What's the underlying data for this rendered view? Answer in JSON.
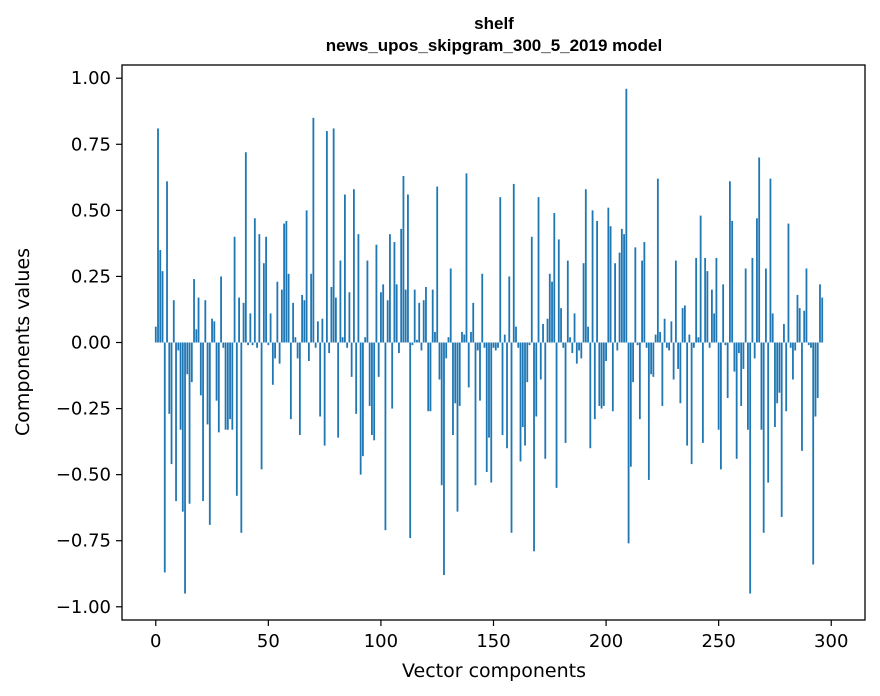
{
  "chart_data": {
    "type": "bar",
    "title": "shelf",
    "subtitle": "news_upos_skipgram_300_5_2019 model",
    "xlabel": "Vector components",
    "ylabel": "Components values",
    "xlim": [
      -15,
      315
    ],
    "ylim": [
      -1.05,
      1.05
    ],
    "x_ticks": [
      0,
      50,
      100,
      150,
      200,
      250,
      300
    ],
    "x_tick_labels": [
      "0",
      "50",
      "100",
      "150",
      "200",
      "250",
      "300"
    ],
    "y_ticks": [
      -1.0,
      -0.75,
      -0.5,
      -0.25,
      0.0,
      0.25,
      0.5,
      0.75,
      1.0
    ],
    "y_tick_labels": [
      "−1.00",
      "−0.75",
      "−0.50",
      "−0.25",
      "0.00",
      "0.25",
      "0.50",
      "0.75",
      "1.00"
    ],
    "bar_color": "#1f77b4",
    "values": [
      0.06,
      0.81,
      0.35,
      0.27,
      -0.87,
      0.61,
      -0.27,
      -0.46,
      0.16,
      -0.6,
      -0.03,
      -0.33,
      -0.64,
      -0.95,
      -0.12,
      -0.61,
      -0.15,
      0.24,
      0.05,
      0.17,
      -0.2,
      -0.6,
      0.16,
      -0.31,
      -0.69,
      0.09,
      0.08,
      -0.22,
      -0.34,
      0.25,
      -0.02,
      -0.33,
      -0.33,
      -0.29,
      -0.33,
      0.4,
      -0.58,
      0.17,
      -0.72,
      0.15,
      0.72,
      -0.01,
      0.11,
      -0.01,
      0.47,
      -0.02,
      0.41,
      -0.48,
      0.3,
      0.4,
      -0.01,
      0.11,
      -0.16,
      -0.06,
      0.23,
      -0.08,
      0.2,
      0.45,
      0.46,
      0.26,
      -0.29,
      0.15,
      0.02,
      -0.06,
      -0.35,
      0.18,
      0.16,
      0.5,
      -0.07,
      0.26,
      0.85,
      -0.02,
      0.08,
      -0.28,
      0.09,
      -0.39,
      0.8,
      -0.04,
      0.21,
      0.81,
      0.17,
      -0.36,
      0.31,
      0.02,
      0.56,
      -0.02,
      0.19,
      -0.13,
      0.58,
      -0.27,
      0.41,
      -0.5,
      -0.43,
      0.02,
      0.31,
      -0.24,
      -0.35,
      -0.37,
      0.37,
      -0.13,
      0.19,
      0.22,
      -0.71,
      0.16,
      0.41,
      -0.25,
      0.38,
      0.22,
      -0.04,
      0.43,
      0.63,
      0.2,
      0.56,
      -0.74,
      -0.01,
      0.2,
      0.01,
      0.15,
      -0.03,
      0.16,
      0.21,
      -0.26,
      -0.26,
      0.2,
      0.04,
      0.59,
      -0.14,
      -0.54,
      -0.88,
      -0.06,
      0.02,
      0.28,
      -0.35,
      -0.23,
      -0.64,
      -0.24,
      0.04,
      0.03,
      0.64,
      -0.17,
      0.04,
      0.15,
      -0.54,
      -0.03,
      -0.22,
      0.26,
      -0.02,
      -0.49,
      -0.36,
      -0.53,
      -0.02,
      -0.03,
      -0.02,
      0.55,
      -0.35,
      0.03,
      -0.4,
      0.25,
      -0.72,
      0.6,
      0.06,
      -0.02,
      -0.45,
      -0.32,
      -0.39,
      -0.15,
      -0.01,
      0.4,
      -0.79,
      -0.28,
      0.55,
      -0.14,
      0.07,
      -0.44,
      0.09,
      0.26,
      0.23,
      0.49,
      -0.55,
      0.39,
      0.13,
      -0.02,
      -0.38,
      0.31,
      0.02,
      -0.04,
      0.11,
      -0.08,
      -0.03,
      -0.06,
      0.3,
      0.58,
      0.06,
      -0.4,
      0.5,
      -0.29,
      0.46,
      -0.24,
      -0.25,
      -0.24,
      -0.07,
      0.51,
      0.44,
      -0.26,
      0.3,
      -0.03,
      0.34,
      0.43,
      0.41,
      0.96,
      -0.76,
      -0.47,
      -0.15,
      0.36,
      -0.01,
      -0.29,
      0.31,
      0.38,
      -0.02,
      -0.52,
      -0.12,
      -0.13,
      0.03,
      0.62,
      0.04,
      -0.24,
      0.09,
      -0.02,
      -0.03,
      0.08,
      -0.14,
      0.31,
      -0.1,
      -0.23,
      0.13,
      0.14,
      -0.39,
      0.03,
      -0.46,
      -0.02,
      0.32,
      0.02,
      0.48,
      -0.38,
      0.32,
      0.27,
      -0.02,
      0.2,
      0.11,
      0.32,
      -0.33,
      -0.48,
      0.22,
      -0.01,
      -0.21,
      0.61,
      0.46,
      -0.11,
      -0.44,
      -0.04,
      -0.24,
      -0.1,
      0.28,
      -0.33,
      -0.95,
      0.32,
      -0.06,
      0.47,
      0.7,
      -0.33,
      -0.72,
      0.28,
      -0.53,
      0.62,
      0.11,
      -0.32,
      -0.23,
      -0.19,
      -0.66,
      0.07,
      -0.26,
      0.45,
      -0.02,
      -0.14,
      -0.03,
      0.18,
      0.13,
      -0.41,
      0.12,
      0.28,
      -0.01,
      -0.02,
      -0.84,
      -0.28,
      -0.21,
      0.22,
      0.17
    ]
  }
}
